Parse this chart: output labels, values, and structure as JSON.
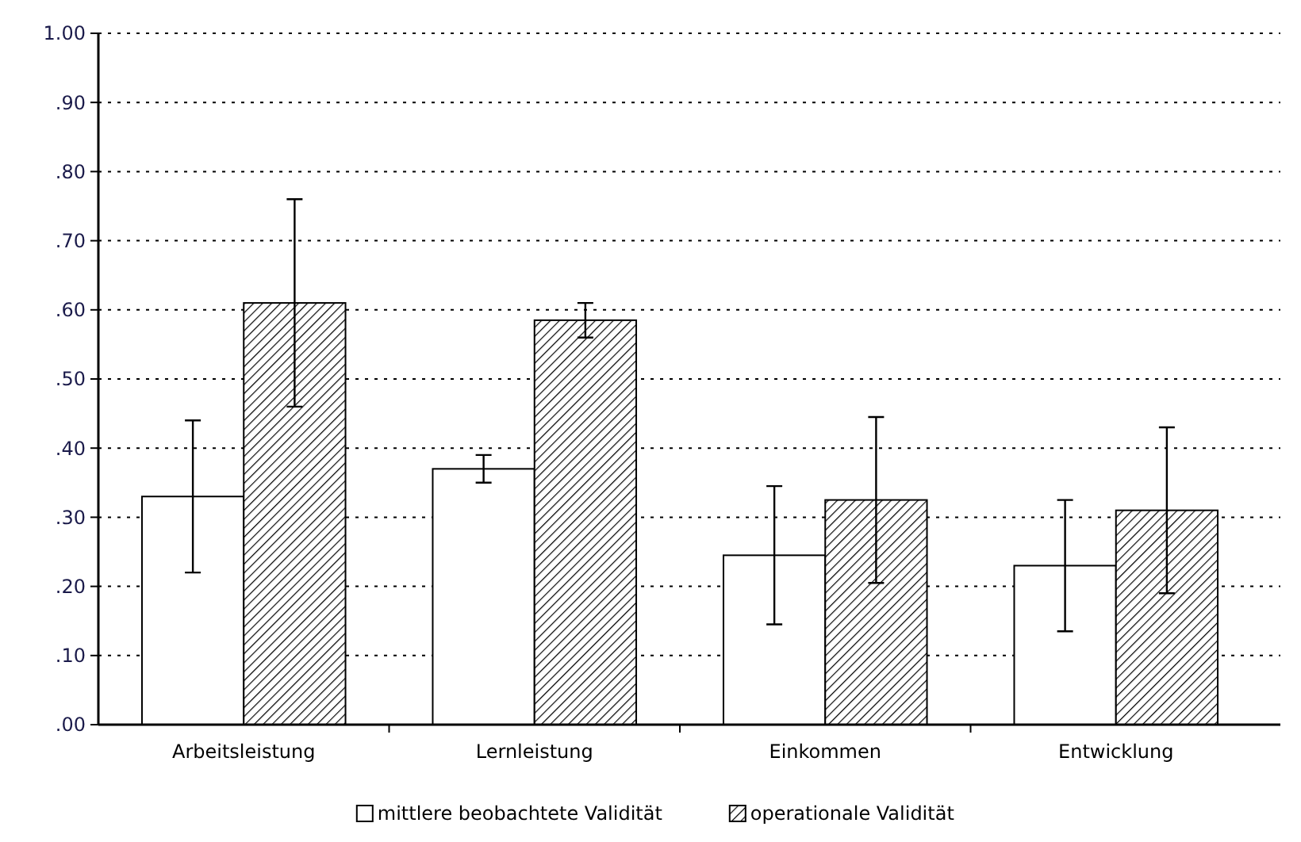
{
  "chart_data": {
    "type": "bar",
    "categories": [
      "Arbeitsleistung",
      "Lernleistung",
      "Einkommen",
      "Entwicklung"
    ],
    "series": [
      {
        "name": "mittlere beobachtete Validität",
        "color": "#ffffff",
        "values": [
          0.33,
          0.37,
          0.245,
          0.23
        ],
        "errors": [
          0.11,
          0.02,
          0.1,
          0.095
        ]
      },
      {
        "name": "operationale Validität",
        "color": "#000000",
        "values": [
          0.61,
          0.585,
          0.325,
          0.31
        ],
        "errors": [
          0.15,
          0.025,
          0.12,
          0.12
        ]
      }
    ],
    "ylim": [
      0,
      1
    ],
    "yticks": [
      {
        "value": 0,
        "label": ".00"
      },
      {
        "value": 0.1,
        "label": ".10"
      },
      {
        "value": 0.2,
        "label": ".20"
      },
      {
        "value": 0.3,
        "label": ".30"
      },
      {
        "value": 0.4,
        "label": ".40"
      },
      {
        "value": 0.5,
        "label": ".50"
      },
      {
        "value": 0.6,
        "label": ".60"
      },
      {
        "value": 0.7,
        "label": ".70"
      },
      {
        "value": 0.8,
        "label": ".80"
      },
      {
        "value": 0.9,
        "label": ".90"
      },
      {
        "value": 1,
        "label": "1.00"
      }
    ],
    "grid": "y",
    "legend": "bottom"
  }
}
